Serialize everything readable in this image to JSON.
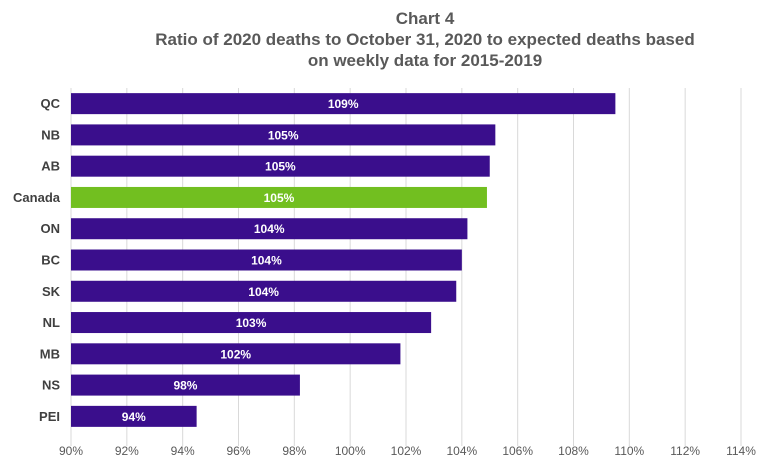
{
  "chart_data": {
    "type": "bar",
    "orientation": "horizontal",
    "title": "Chart 4",
    "subtitle": "Ratio of 2020 deaths to October 31, 2020 to expected deaths based on weekly data for 2015-2019",
    "subtitle_lines": [
      "Ratio of 2020 deaths to October 31, 2020 to expected deaths based",
      "on weekly  data for 2015-2019"
    ],
    "categories": [
      "QC",
      "NB",
      "AB",
      "Canada",
      "ON",
      "BC",
      "SK",
      "NL",
      "MB",
      "NS",
      "PEI"
    ],
    "values": [
      109.5,
      105.2,
      105.0,
      104.9,
      104.2,
      104.0,
      103.8,
      102.9,
      101.8,
      98.2,
      94.5
    ],
    "data_labels": [
      "109%",
      "105%",
      "105%",
      "105%",
      "104%",
      "104%",
      "104%",
      "103%",
      "102%",
      "98%",
      "94%"
    ],
    "xlim": [
      90,
      114
    ],
    "x_ticks": [
      "90%",
      "92%",
      "94%",
      "96%",
      "98%",
      "100%",
      "102%",
      "104%",
      "106%",
      "108%",
      "110%",
      "112%",
      "114%"
    ],
    "x_tick_values": [
      90,
      92,
      94,
      96,
      98,
      100,
      102,
      104,
      106,
      108,
      110,
      112,
      114
    ],
    "grid": true,
    "legend": "none",
    "colors": {
      "bar": "#3a0e8c",
      "highlight": "#72bf20",
      "grid": "#d9d9d9"
    },
    "highlight_category": "Canada"
  }
}
